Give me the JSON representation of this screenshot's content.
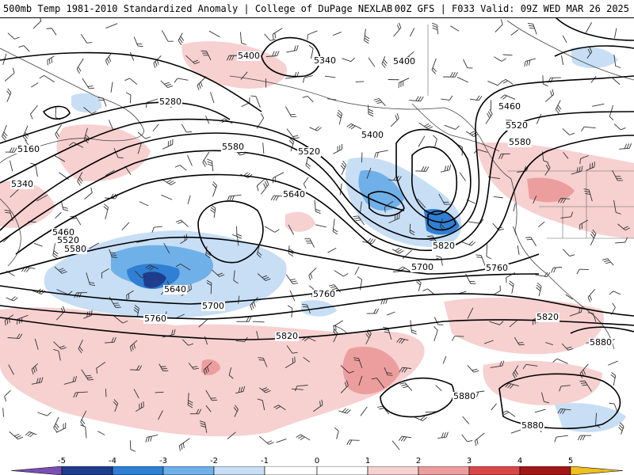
{
  "header": {
    "title_left": "500mb Temp 1981-2010 Standardized Anomaly | College of DuPage NEXLAB",
    "title_right": "00Z GFS | F033 Valid: 09Z WED MAR 26 2025"
  },
  "contour_labels": [
    {
      "id": "l5400a",
      "text": "5400"
    },
    {
      "id": "l5340a",
      "text": "5340"
    },
    {
      "id": "l5400b",
      "text": "5400"
    },
    {
      "id": "l5280",
      "text": "5280"
    },
    {
      "id": "l5460a",
      "text": "5460"
    },
    {
      "id": "l5520a",
      "text": "5520"
    },
    {
      "id": "l5580a",
      "text": "5580"
    },
    {
      "id": "l5400c",
      "text": "5400"
    },
    {
      "id": "l5160",
      "text": "5160"
    },
    {
      "id": "l5580b",
      "text": "5580"
    },
    {
      "id": "l5520b",
      "text": "5520"
    },
    {
      "id": "l5340b",
      "text": "5340"
    },
    {
      "id": "l5640a",
      "text": "5640"
    },
    {
      "id": "l5460b",
      "text": "5460"
    },
    {
      "id": "l5520c",
      "text": "5520"
    },
    {
      "id": "l5580c",
      "text": "5580"
    },
    {
      "id": "l5820a",
      "text": "5820"
    },
    {
      "id": "l5640b",
      "text": "5640"
    },
    {
      "id": "l5700a",
      "text": "5700"
    },
    {
      "id": "l5760a",
      "text": "5760"
    },
    {
      "id": "l5700b",
      "text": "5700"
    },
    {
      "id": "l5760b",
      "text": "5760"
    },
    {
      "id": "l5820b",
      "text": "5820"
    },
    {
      "id": "l5760c",
      "text": "5760"
    },
    {
      "id": "l5820c",
      "text": "5820"
    },
    {
      "id": "l5880a",
      "text": "5880"
    },
    {
      "id": "l5880b",
      "text": "5880"
    },
    {
      "id": "l5880c",
      "text": "5880"
    }
  ],
  "colorbar": {
    "ticks": [
      "-5",
      "-4",
      "-3",
      "-2",
      "-1",
      "0",
      "1",
      "2",
      "3",
      "4",
      "5"
    ],
    "colors": {
      "m5": "#7a4fb4",
      "m4": "#1f3d8c",
      "m3": "#2f7fd4",
      "m2": "#6fb0e8",
      "m1": "#c7def5",
      "zero": "#ffffff",
      "p1": "#f7d0d0",
      "p2": "#ec9e9e",
      "p3": "#d94848",
      "p4": "#a01818",
      "p5": "#f0c020"
    }
  }
}
